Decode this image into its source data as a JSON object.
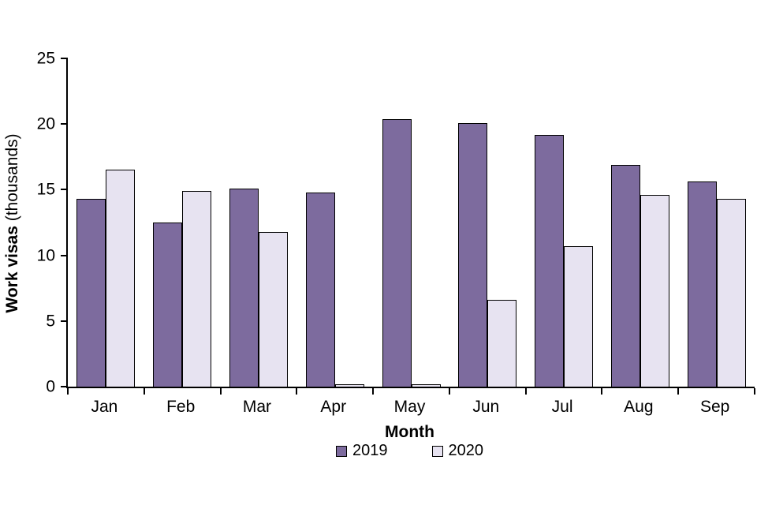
{
  "chart_data": {
    "type": "bar",
    "title": "",
    "categories": [
      "Jan",
      "Feb",
      "Mar",
      "Apr",
      "May",
      "Jun",
      "Jul",
      "Aug",
      "Sep"
    ],
    "series": [
      {
        "name": "2019",
        "color": "#7d6b9e",
        "values": [
          14.3,
          12.5,
          15.1,
          14.8,
          20.4,
          20.1,
          19.2,
          16.9,
          15.6
        ]
      },
      {
        "name": "2020",
        "color": "#e7e3f1",
        "values": [
          16.5,
          14.9,
          11.8,
          0.1,
          0.1,
          6.6,
          10.7,
          14.6,
          14.3
        ]
      }
    ],
    "xlabel": "Month",
    "ylabel": "Work visas (thousands)",
    "ylabel_main": "Work visas",
    "ylabel_unit": " (thousands)",
    "ylim": [
      0,
      25
    ],
    "yticks": [
      0,
      5,
      10,
      15,
      20,
      25
    ],
    "grid": false,
    "legend_position": "bottom",
    "axis_color": "#000000",
    "bar_border_color": "#000000"
  }
}
